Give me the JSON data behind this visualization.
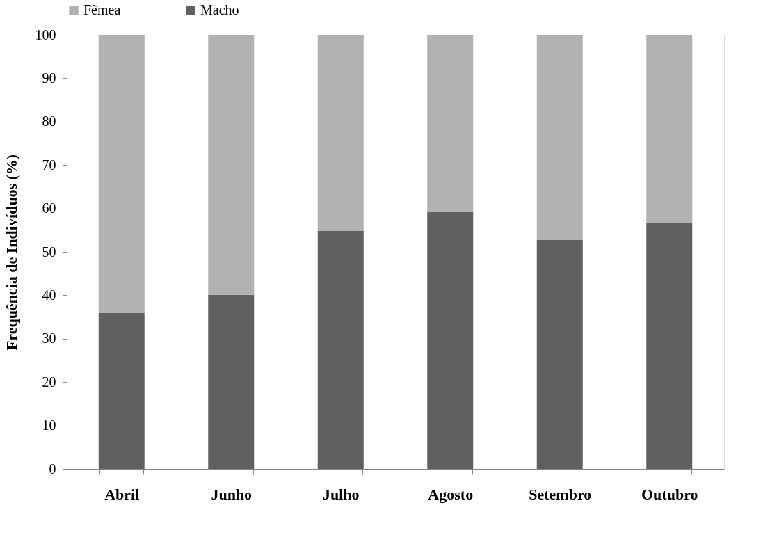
{
  "chart_data": {
    "type": "bar",
    "stacked": true,
    "ylabel": "Frequência de Indivíduos (%)",
    "categories": [
      "Abril",
      "Junho",
      "Julho",
      "Agosto",
      "Setembro",
      "Outubro"
    ],
    "series": [
      {
        "name": "Macho",
        "color": "#606060",
        "values": [
          35.9,
          40.1,
          54.9,
          59.2,
          52.8,
          56.6
        ]
      },
      {
        "name": "Fêmea",
        "color": "#b2b2b2",
        "values": [
          64.1,
          59.9,
          45.1,
          40.8,
          47.2,
          43.4
        ]
      }
    ],
    "ylim": [
      0,
      100
    ],
    "yticks": [
      0,
      10,
      20,
      30,
      40,
      50,
      60,
      70,
      80,
      90,
      100
    ],
    "grid": false,
    "legend": "top"
  }
}
